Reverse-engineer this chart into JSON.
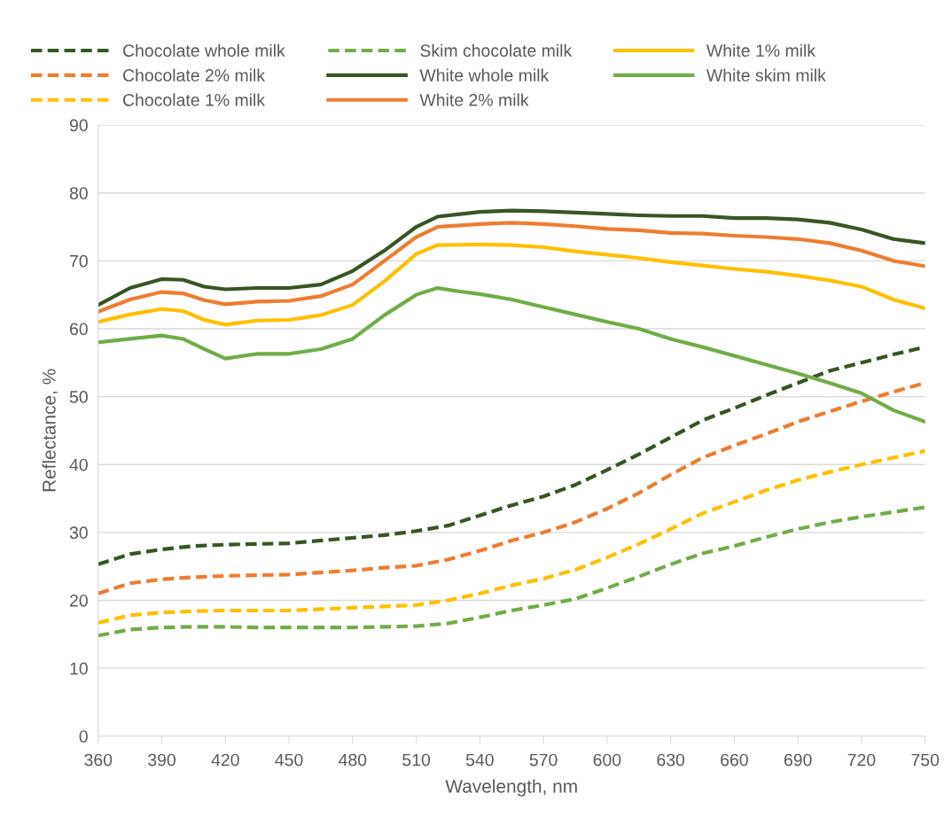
{
  "chart_data": {
    "type": "line",
    "xlabel": "Wavelength, nm",
    "ylabel": "Reflectance, %",
    "xlim": [
      360,
      750
    ],
    "xticks": [
      360,
      390,
      420,
      450,
      480,
      510,
      540,
      570,
      600,
      630,
      660,
      690,
      720,
      750
    ],
    "ylim": [
      0,
      90
    ],
    "yticks": [
      0,
      10,
      20,
      30,
      40,
      50,
      60,
      70,
      80,
      90
    ],
    "grid": "y",
    "legend": "top",
    "marker": "none",
    "x": [
      360,
      375,
      390,
      405,
      420,
      435,
      450,
      465,
      480,
      495,
      510,
      525,
      540,
      555,
      570,
      585,
      600,
      615,
      630,
      645,
      660,
      675,
      690,
      705,
      720,
      735,
      750
    ],
    "series": [
      {
        "name": "Chocolate whole milk",
        "color": "#375623",
        "line_style": "dashed",
        "values": [
          25.3,
          26.8,
          27.5,
          28,
          28.2,
          28.3,
          28.4,
          28.8,
          29.2,
          29.6,
          30.2,
          31,
          32.5,
          34,
          35.3,
          37,
          39.2,
          41.5,
          44,
          46.5,
          48.3,
          50.2,
          52,
          53.8,
          55,
          56.2,
          57.3
        ]
      },
      {
        "name": "Skim chocolate milk",
        "color": "#70ad47",
        "line_style": "dashed",
        "values": [
          14.8,
          15.7,
          16,
          16.1,
          16.1,
          16,
          16,
          16,
          16,
          16.1,
          16.2,
          16.6,
          17.5,
          18.5,
          19.3,
          20.2,
          21.8,
          23.5,
          25.3,
          26.9,
          28,
          29.3,
          30.5,
          31.5,
          32.3,
          33,
          33.7
        ]
      },
      {
        "name": "White 1% milk",
        "color": "#ffc000",
        "line_style": "solid",
        "x": [
          360,
          375,
          390,
          400,
          410,
          420,
          435,
          450,
          465,
          480,
          495,
          510,
          520,
          540,
          555,
          570,
          585,
          600,
          615,
          630,
          645,
          660,
          675,
          690,
          705,
          720,
          735,
          750
        ],
        "values": [
          61,
          62.1,
          62.9,
          62.6,
          61.3,
          60.6,
          61.2,
          61.3,
          62,
          63.5,
          67,
          71,
          72.3,
          72.4,
          72.3,
          72,
          71.4,
          70.9,
          70.4,
          69.8,
          69.3,
          68.8,
          68.4,
          67.8,
          67.1,
          66.2,
          64.3,
          63
        ]
      },
      {
        "name": "Chocolate 2% milk",
        "color": "#ed7d31",
        "line_style": "dashed",
        "values": [
          21,
          22.5,
          23.1,
          23.4,
          23.6,
          23.7,
          23.8,
          24.1,
          24.4,
          24.8,
          25.1,
          26,
          27.3,
          28.8,
          30,
          31.5,
          33.5,
          35.8,
          38.5,
          41,
          42.8,
          44.5,
          46.3,
          47.8,
          49.3,
          50.7,
          52
        ]
      },
      {
        "name": "White whole milk",
        "color": "#375623",
        "line_style": "solid",
        "x": [
          360,
          375,
          390,
          400,
          410,
          420,
          435,
          450,
          465,
          480,
          495,
          510,
          520,
          540,
          555,
          570,
          585,
          600,
          615,
          630,
          645,
          660,
          675,
          690,
          705,
          720,
          735,
          750
        ],
        "values": [
          63.5,
          66,
          67.3,
          67.2,
          66.2,
          65.8,
          66,
          66,
          66.5,
          68.5,
          71.5,
          75,
          76.5,
          77.2,
          77.4,
          77.3,
          77.1,
          76.9,
          76.7,
          76.6,
          76.6,
          76.3,
          76.3,
          76.1,
          75.6,
          74.6,
          73.2,
          72.6
        ]
      },
      {
        "name": "White skim milk",
        "color": "#70ad47",
        "line_style": "solid",
        "x": [
          360,
          375,
          390,
          400,
          410,
          420,
          435,
          450,
          465,
          480,
          495,
          510,
          520,
          530,
          540,
          555,
          570,
          585,
          600,
          615,
          630,
          645,
          660,
          675,
          690,
          705,
          720,
          735,
          750
        ],
        "values": [
          58,
          58.5,
          59,
          58.5,
          57,
          55.6,
          56.3,
          56.3,
          57,
          58.5,
          62,
          65,
          66,
          65.5,
          65.1,
          64.3,
          63.2,
          62.1,
          61,
          60,
          58.5,
          57.3,
          56,
          54.7,
          53.4,
          52,
          50.5,
          48,
          46.3
        ]
      },
      {
        "name": "Chocolate 1% milk",
        "color": "#ffc000",
        "line_style": "dashed",
        "values": [
          16.7,
          17.8,
          18.2,
          18.4,
          18.5,
          18.5,
          18.5,
          18.7,
          18.9,
          19.1,
          19.3,
          20,
          21,
          22.2,
          23.2,
          24.5,
          26.3,
          28.3,
          30.5,
          32.8,
          34.5,
          36.2,
          37.7,
          38.9,
          40,
          41,
          42
        ]
      },
      {
        "name": "White 2% milk",
        "color": "#ed7d31",
        "line_style": "solid",
        "x": [
          360,
          375,
          390,
          400,
          410,
          420,
          435,
          450,
          465,
          480,
          495,
          510,
          520,
          540,
          555,
          570,
          585,
          600,
          615,
          630,
          645,
          660,
          675,
          690,
          705,
          720,
          735,
          750
        ],
        "values": [
          62.5,
          64.3,
          65.4,
          65.2,
          64.2,
          63.6,
          64,
          64.1,
          64.8,
          66.5,
          70,
          73.5,
          75,
          75.4,
          75.6,
          75.4,
          75.1,
          74.7,
          74.5,
          74.1,
          74,
          73.7,
          73.5,
          73.2,
          72.6,
          71.5,
          70,
          69.2
        ]
      }
    ]
  }
}
